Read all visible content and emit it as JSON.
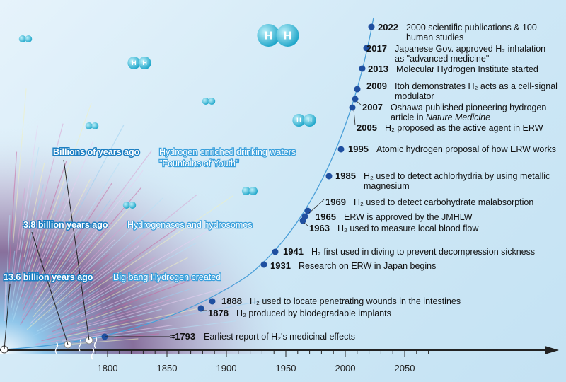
{
  "colors": {
    "curve": "#4a9fd8",
    "dot": "#1f4fa0",
    "axis": "#222222",
    "era_outline": "#1d7fc2"
  },
  "axis": {
    "ticks": [
      "1800",
      "1850",
      "1900",
      "1950",
      "2000",
      "2050"
    ]
  },
  "eras": [
    {
      "when": "Billions of years ago",
      "what": [
        "Hydrogen enriched drinking waters",
        "\"Fountains of Youth\""
      ]
    },
    {
      "when": "3.8 billion years ago",
      "what": [
        "Hydrogenases and hydrosomes"
      ]
    },
    {
      "when": "13.6 billion years ago",
      "what": [
        "Big bang Hydrogen created"
      ]
    }
  ],
  "events": [
    {
      "year": "2022",
      "lines": [
        "2000 scientific publications & 100",
        "human studies"
      ]
    },
    {
      "year": "2017",
      "lines": [
        "Japanese Gov. approved H₂ inhalation",
        "as \"advanced medicine\""
      ]
    },
    {
      "year": "2013",
      "lines": [
        "Molecular Hydrogen Institute started"
      ]
    },
    {
      "year": "2009",
      "lines": [
        "Itoh demonstrates H₂ acts as a cell-signal",
        "modulator"
      ]
    },
    {
      "year": "2007",
      "lines": [
        "Oshawa published pioneering hydrogen",
        "article in "
      ],
      "italic": "Nature Medicine"
    },
    {
      "year": "2005",
      "lines": [
        "H₂ proposed as the active agent in ERW"
      ]
    },
    {
      "year": "1995",
      "lines": [
        "Atomic hydrogen proposal of how ERW works"
      ]
    },
    {
      "year": "1985",
      "lines": [
        "H₂ used to detect achlorhydria by using metallic",
        "magnesium"
      ]
    },
    {
      "year": "1969",
      "lines": [
        "H₂ used to detect carbohydrate malabsorption"
      ]
    },
    {
      "year": "1965",
      "lines": [
        "ERW is approved by the JMHLW"
      ]
    },
    {
      "year": "1963",
      "lines": [
        "H₂ used to measure local blood flow"
      ]
    },
    {
      "year": "1941",
      "lines": [
        "H₂ first used in diving to prevent decompression sickness"
      ]
    },
    {
      "year": "1931",
      "lines": [
        "Research on ERW in Japan begins"
      ]
    },
    {
      "year": "1888",
      "lines": [
        "H₂ used to locate penetrating wounds in the intestines"
      ]
    },
    {
      "year": "1878",
      "lines": [
        "H₂ produced by biodegradable implants"
      ]
    },
    {
      "year": "≈1793",
      "lines": [
        "Earliest report of H₂'s medicinal effects"
      ]
    }
  ],
  "molecule_label": "H"
}
